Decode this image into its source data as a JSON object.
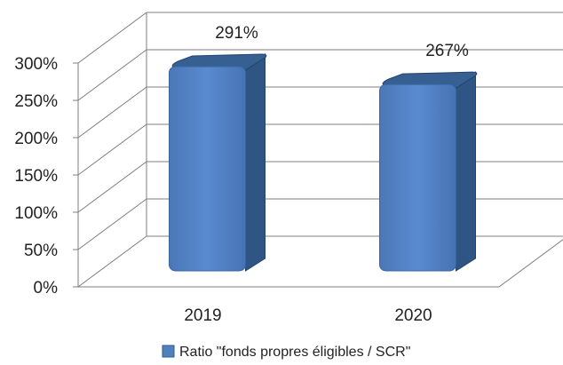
{
  "chart_data": {
    "type": "bar",
    "categories": [
      "2019",
      "2020"
    ],
    "series": [
      {
        "name": "Ratio \"fonds propres éligibles / SCR\"",
        "values": [
          291,
          267
        ],
        "color": "#4f81bd"
      }
    ],
    "data_labels": [
      "291%",
      "267%"
    ],
    "y_ticks": [
      "0%",
      "50%",
      "100%",
      "150%",
      "200%",
      "250%",
      "300%"
    ],
    "ylim": [
      0,
      300
    ],
    "grid": true,
    "style": "3d",
    "legend_position": "bottom"
  }
}
